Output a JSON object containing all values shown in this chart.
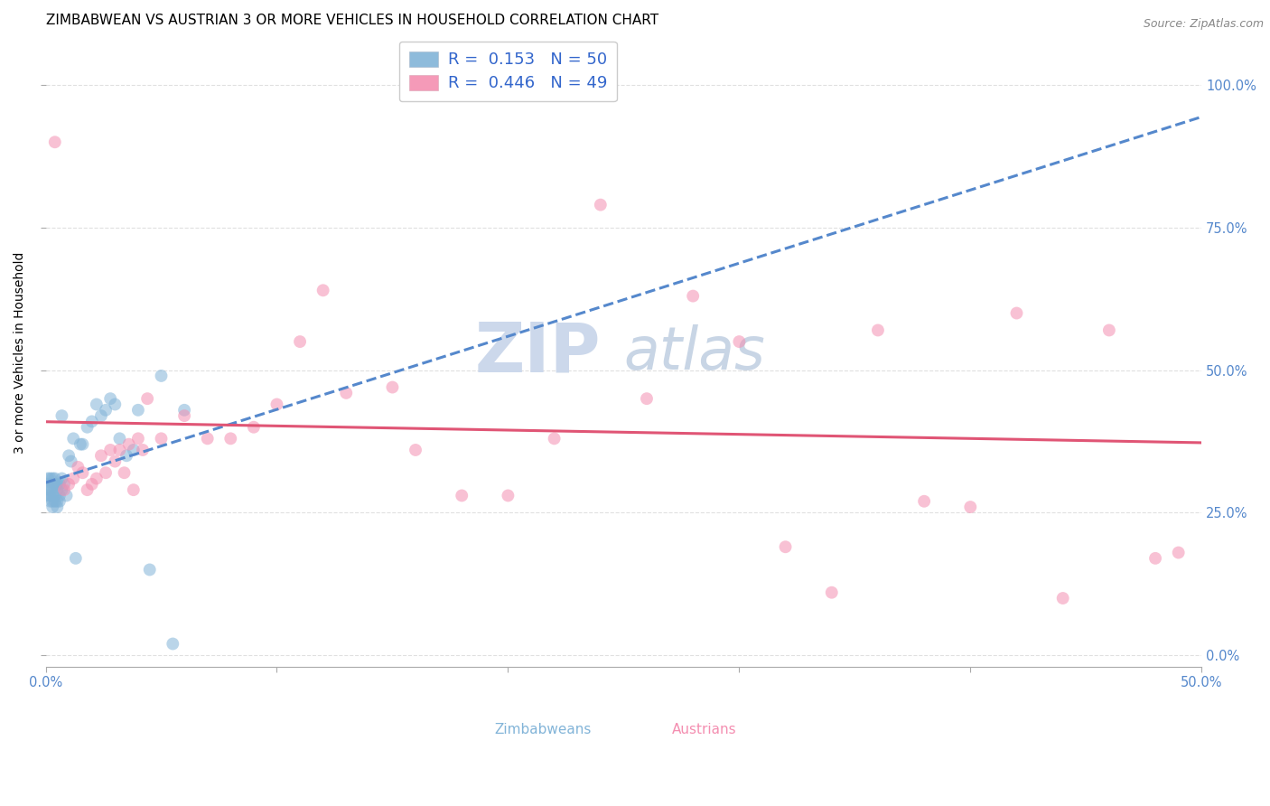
{
  "title": "ZIMBABWEAN VS AUSTRIAN 3 OR MORE VEHICLES IN HOUSEHOLD CORRELATION CHART",
  "source": "Source: ZipAtlas.com",
  "ylabel": "3 or more Vehicles in Household",
  "xlim": [
    0.0,
    0.5
  ],
  "ylim": [
    -0.02,
    1.08
  ],
  "watermark_zip": "ZIP",
  "watermark_atlas": "atlas",
  "legend_entries": [
    {
      "label": "Zimbabweans",
      "R": "0.153",
      "N": "50",
      "color": "#aac4e0"
    },
    {
      "label": "Austrians",
      "R": "0.446",
      "N": "49",
      "color": "#f4a0b5"
    }
  ],
  "zim_x": [
    0.001,
    0.001,
    0.001,
    0.001,
    0.002,
    0.002,
    0.002,
    0.002,
    0.003,
    0.003,
    0.003,
    0.003,
    0.003,
    0.004,
    0.004,
    0.004,
    0.004,
    0.005,
    0.005,
    0.005,
    0.005,
    0.006,
    0.006,
    0.006,
    0.007,
    0.007,
    0.007,
    0.008,
    0.009,
    0.01,
    0.011,
    0.012,
    0.013,
    0.015,
    0.016,
    0.018,
    0.02,
    0.022,
    0.024,
    0.026,
    0.028,
    0.03,
    0.032,
    0.035,
    0.038,
    0.04,
    0.045,
    0.05,
    0.055,
    0.06
  ],
  "zim_y": [
    0.28,
    0.29,
    0.3,
    0.31,
    0.27,
    0.28,
    0.29,
    0.31,
    0.26,
    0.27,
    0.28,
    0.3,
    0.31,
    0.27,
    0.28,
    0.3,
    0.31,
    0.26,
    0.27,
    0.29,
    0.3,
    0.27,
    0.28,
    0.3,
    0.29,
    0.31,
    0.42,
    0.3,
    0.28,
    0.35,
    0.34,
    0.38,
    0.17,
    0.37,
    0.37,
    0.4,
    0.41,
    0.44,
    0.42,
    0.43,
    0.45,
    0.44,
    0.38,
    0.35,
    0.36,
    0.43,
    0.15,
    0.49,
    0.02,
    0.43
  ],
  "aut_x": [
    0.004,
    0.008,
    0.01,
    0.012,
    0.014,
    0.016,
    0.018,
    0.02,
    0.022,
    0.024,
    0.026,
    0.028,
    0.03,
    0.032,
    0.034,
    0.036,
    0.038,
    0.04,
    0.042,
    0.044,
    0.05,
    0.06,
    0.07,
    0.08,
    0.09,
    0.1,
    0.11,
    0.12,
    0.13,
    0.15,
    0.16,
    0.18,
    0.2,
    0.22,
    0.24,
    0.26,
    0.28,
    0.3,
    0.32,
    0.34,
    0.36,
    0.38,
    0.4,
    0.42,
    0.44,
    0.46,
    0.48,
    0.49,
    0.17
  ],
  "aut_y": [
    0.9,
    0.29,
    0.3,
    0.31,
    0.33,
    0.32,
    0.29,
    0.3,
    0.31,
    0.35,
    0.32,
    0.36,
    0.34,
    0.36,
    0.32,
    0.37,
    0.29,
    0.38,
    0.36,
    0.45,
    0.38,
    0.42,
    0.38,
    0.38,
    0.4,
    0.44,
    0.55,
    0.64,
    0.46,
    0.47,
    0.36,
    0.28,
    0.28,
    0.38,
    0.79,
    0.45,
    0.63,
    0.55,
    0.19,
    0.11,
    0.57,
    0.27,
    0.26,
    0.6,
    0.1,
    0.57,
    0.17,
    0.18,
    1.0
  ],
  "dot_size": 100,
  "dot_alpha": 0.55,
  "zim_color": "#82b4d8",
  "aut_color": "#f48fb1",
  "zim_line_color": "#5588cc",
  "aut_line_color": "#e05575",
  "line_width": 2.2,
  "grid_color": "#cccccc",
  "grid_alpha": 0.6,
  "title_fontsize": 11,
  "source_fontsize": 9,
  "tick_color": "#5588cc",
  "tick_fontsize": 10.5,
  "ylabel_fontsize": 10,
  "watermark_color": "#ccd8eb",
  "watermark_fontsize": 55,
  "background_color": "#ffffff"
}
